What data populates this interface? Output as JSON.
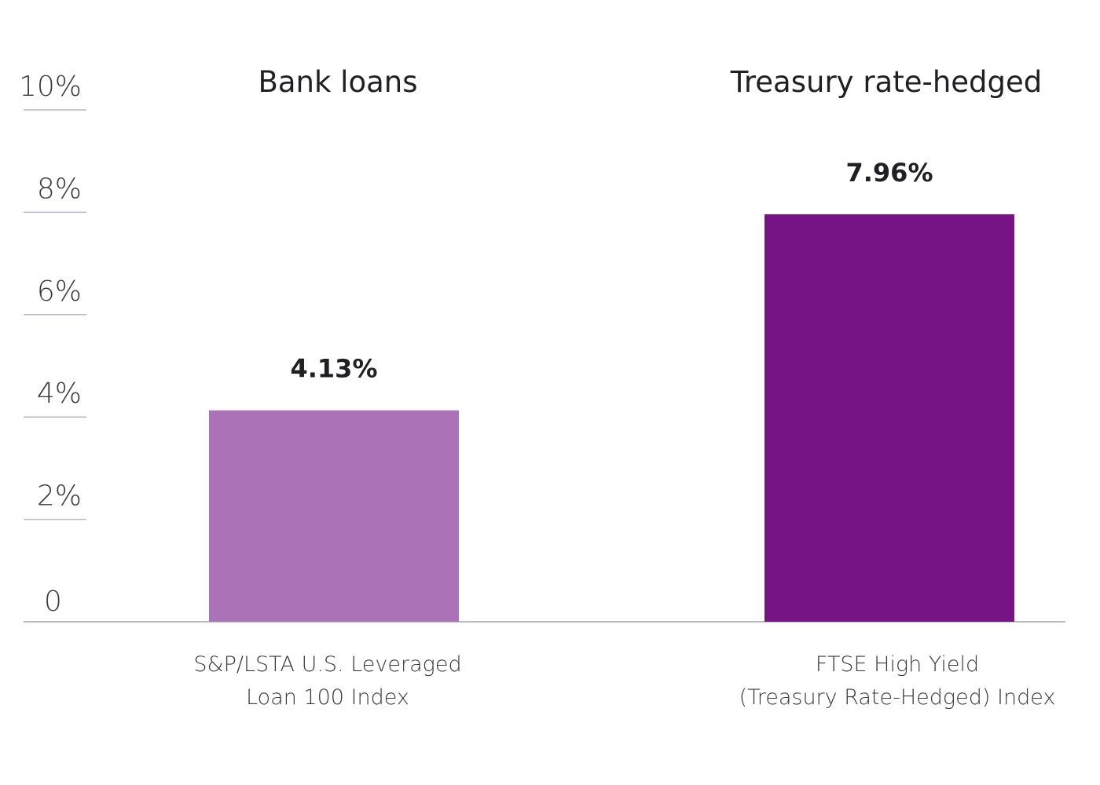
{
  "chart_data": {
    "type": "bar",
    "categories": [
      [
        "S&P/LSTA U.S. Leveraged",
        "Loan 100 Index"
      ],
      [
        "FTSE High Yield",
        "(Treasury Rate-Hedged) Index"
      ]
    ],
    "group_titles": [
      "Bank loans",
      "Treasury rate-hedged"
    ],
    "values": [
      4.13,
      7.96
    ],
    "value_labels": [
      "4.13%",
      "7.96%"
    ],
    "bar_colors": [
      "#ac72b7",
      "#761485"
    ],
    "ylim": [
      0,
      10
    ],
    "yticks": [
      {
        "value": 0,
        "label": "0"
      },
      {
        "value": 2,
        "label": "2%"
      },
      {
        "value": 4,
        "label": "4%"
      },
      {
        "value": 6,
        "label": "6%"
      },
      {
        "value": 8,
        "label": "8%"
      },
      {
        "value": 10,
        "label": "10%"
      }
    ],
    "grid": true,
    "title": "",
    "xlabel": "",
    "ylabel": ""
  }
}
